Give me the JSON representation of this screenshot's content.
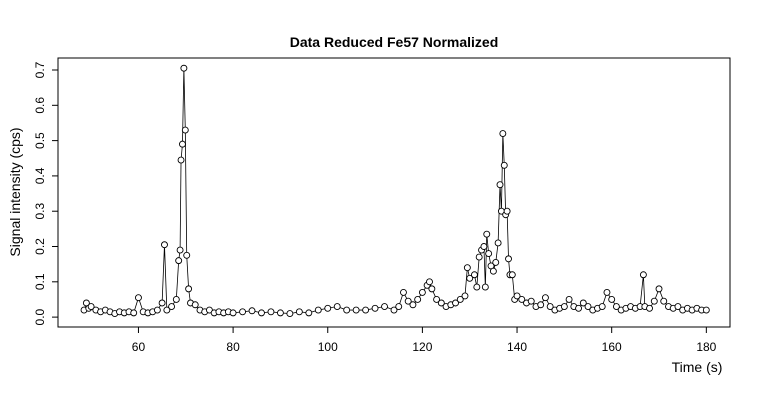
{
  "chart_data": {
    "type": "line-points",
    "title": "Data Reduced Fe57 Normalized",
    "x_label": "Time (s)",
    "y_label": "Signal intensity (cps)",
    "x": [
      48.5,
      49,
      49.5,
      50,
      51,
      52,
      53,
      54,
      55,
      56,
      57,
      58,
      59,
      60,
      61,
      62,
      63,
      64,
      65,
      65.5,
      66,
      67,
      68,
      68.5,
      68.8,
      69,
      69.3,
      69.6,
      69.9,
      70.2,
      70.6,
      71,
      72,
      73,
      74,
      75,
      76,
      77,
      78,
      79,
      80,
      82,
      84,
      86,
      88,
      90,
      92,
      94,
      96,
      98,
      100,
      102,
      104,
      106,
      108,
      110,
      112,
      114,
      115,
      116,
      117,
      118,
      119,
      120,
      121,
      121.5,
      122,
      123,
      124,
      125,
      126,
      127,
      128,
      129,
      129.5,
      130,
      131,
      131.5,
      132,
      132.5,
      133,
      133.3,
      133.6,
      134,
      134.5,
      135,
      135.5,
      136,
      136.4,
      136.7,
      137,
      137.3,
      137.6,
      137.9,
      138.2,
      138.5,
      139,
      139.5,
      140,
      141,
      142,
      143,
      144,
      145,
      146,
      147,
      148,
      149,
      150,
      151,
      152,
      153,
      154,
      155,
      156,
      157,
      158,
      159,
      160,
      161,
      162,
      163,
      164,
      165,
      166,
      166.7,
      167,
      168,
      169,
      170,
      171,
      172,
      173,
      174,
      175,
      176,
      177,
      178,
      179,
      180
    ],
    "values": [
      0.02,
      0.04,
      0.025,
      0.03,
      0.02,
      0.015,
      0.02,
      0.015,
      0.01,
      0.015,
      0.012,
      0.015,
      0.012,
      0.055,
      0.015,
      0.012,
      0.015,
      0.02,
      0.04,
      0.205,
      0.02,
      0.03,
      0.05,
      0.16,
      0.19,
      0.445,
      0.49,
      0.705,
      0.53,
      0.175,
      0.08,
      0.04,
      0.035,
      0.02,
      0.015,
      0.02,
      0.012,
      0.015,
      0.012,
      0.015,
      0.012,
      0.015,
      0.018,
      0.012,
      0.015,
      0.012,
      0.01,
      0.015,
      0.012,
      0.02,
      0.025,
      0.03,
      0.02,
      0.02,
      0.02,
      0.025,
      0.03,
      0.02,
      0.03,
      0.07,
      0.045,
      0.035,
      0.05,
      0.07,
      0.09,
      0.1,
      0.08,
      0.05,
      0.04,
      0.03,
      0.035,
      0.04,
      0.05,
      0.06,
      0.14,
      0.11,
      0.12,
      0.085,
      0.17,
      0.19,
      0.2,
      0.085,
      0.235,
      0.18,
      0.145,
      0.13,
      0.155,
      0.21,
      0.375,
      0.3,
      0.52,
      0.43,
      0.29,
      0.3,
      0.165,
      0.12,
      0.12,
      0.05,
      0.06,
      0.05,
      0.04,
      0.045,
      0.03,
      0.035,
      0.055,
      0.03,
      0.02,
      0.025,
      0.03,
      0.05,
      0.03,
      0.025,
      0.04,
      0.03,
      0.02,
      0.025,
      0.03,
      0.07,
      0.05,
      0.03,
      0.02,
      0.025,
      0.03,
      0.025,
      0.03,
      0.12,
      0.03,
      0.025,
      0.045,
      0.08,
      0.045,
      0.03,
      0.025,
      0.03,
      0.02,
      0.025,
      0.02,
      0.025,
      0.02,
      0.02
    ],
    "color": "#000000",
    "xlim": [
      43,
      185
    ],
    "xticks": [
      60,
      80,
      100,
      120,
      140,
      160,
      180
    ],
    "ylim": [
      -0.028,
      0.734
    ],
    "yticks": [
      {
        "value": 0,
        "label": "0.0"
      },
      0.1,
      0.2,
      0.3,
      0.4,
      0.5,
      0.6,
      0.7
    ]
  }
}
